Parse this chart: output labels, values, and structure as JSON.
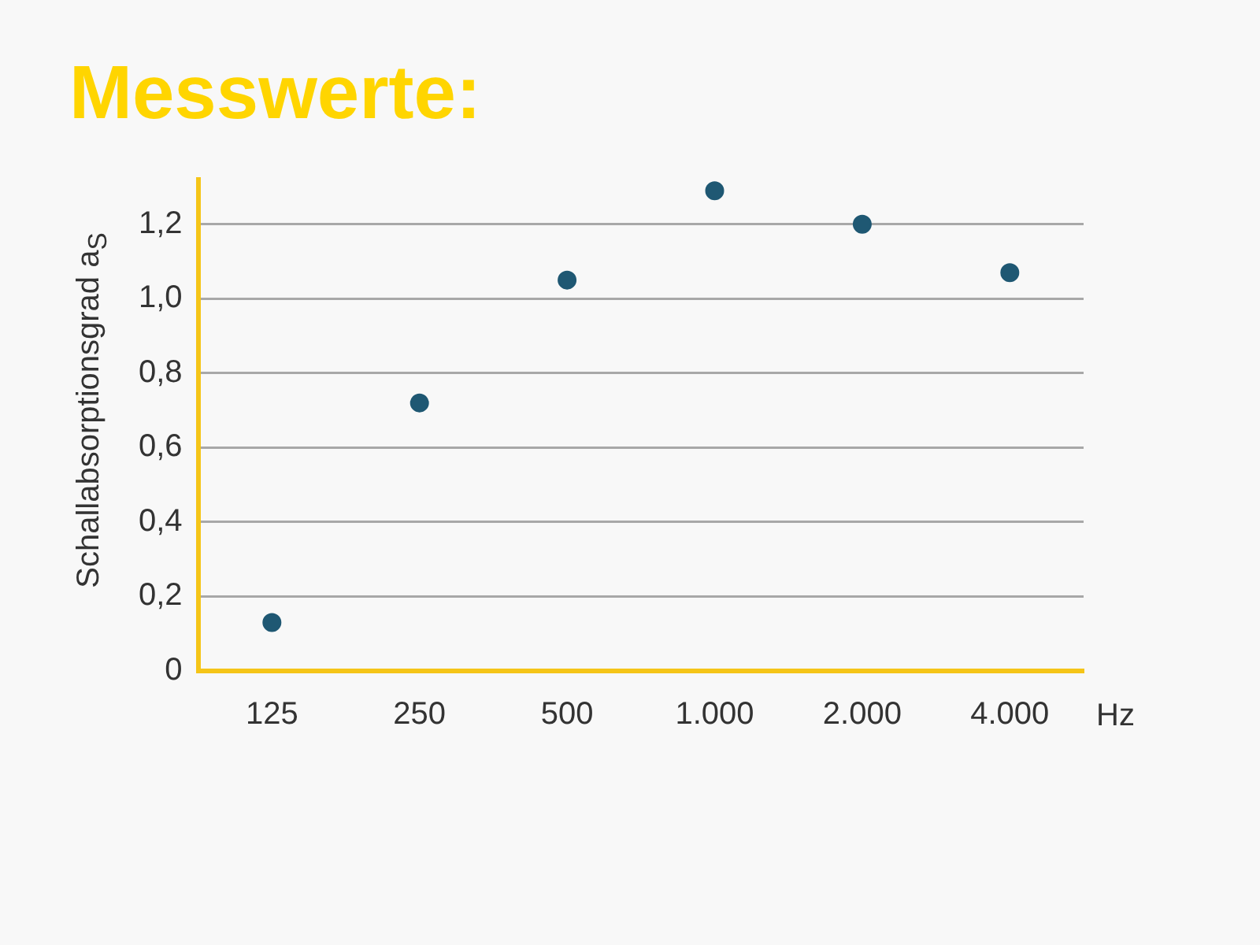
{
  "chart_data": {
    "type": "scatter",
    "title": "Messwerte:",
    "ylabel": "Schallabsorptionsgrad a$_{S}$",
    "xlabel": "Hz",
    "categories": [
      "125",
      "250",
      "500",
      "1.000",
      "2.000",
      "4.000"
    ],
    "series": [
      {
        "color": "#1f5873",
        "values": [
          0.13,
          0.72,
          1.05,
          1.29,
          1.2,
          1.07
        ]
      }
    ],
    "ylim": [
      0,
      1.32
    ],
    "yticks": [
      0,
      {
        "value": 0.2,
        "label": "0,2"
      },
      {
        "value": 0.4,
        "label": "0,4"
      },
      {
        "value": 0.6,
        "label": "0,6"
      },
      {
        "value": 0.8,
        "label": "0,8"
      },
      {
        "value": 1.0,
        "label": "1,0"
      },
      {
        "value": 1.2,
        "label": "1,2"
      }
    ],
    "grid": "y",
    "legend": false,
    "marker": "circle"
  }
}
